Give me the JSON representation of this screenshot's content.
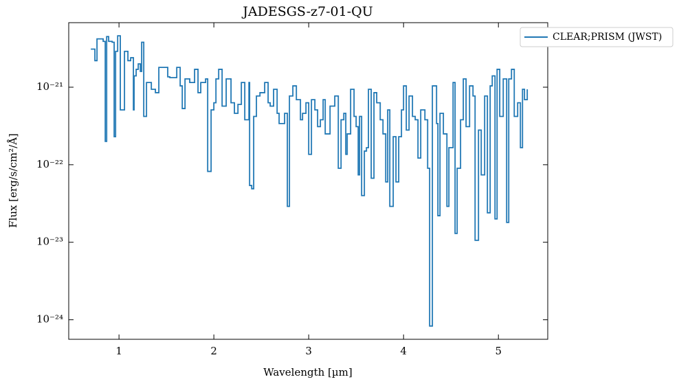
{
  "chart_data": {
    "type": "line",
    "title": "JADESGS-z7-01-QU",
    "xlabel": "Wavelength [µm]",
    "ylabel": "Flux [erg/s/cm²/Å]",
    "xlim": [
      0.47,
      5.52
    ],
    "xticks": [
      1,
      2,
      3,
      4,
      5
    ],
    "ylim": [
      6.8e-21,
      5.6e-25
    ],
    "log_y": true,
    "yticks": [
      {
        "value": 1e-21,
        "label": "10⁻²¹"
      },
      {
        "value": 1e-22,
        "label": "10⁻²²"
      },
      {
        "value": 1e-23,
        "label": "10⁻²³"
      },
      {
        "value": 1e-24,
        "label": "10⁻²⁴"
      }
    ],
    "legend": "upper right",
    "step": true,
    "x": [
      0.703,
      0.746,
      0.768,
      0.833,
      0.855,
      0.87,
      0.891,
      0.928,
      0.949,
      0.964,
      0.986,
      1.014,
      1.058,
      1.094,
      1.123,
      1.152,
      1.159,
      1.181,
      1.203,
      1.225,
      1.239,
      1.261,
      1.29,
      1.341,
      1.384,
      1.42,
      1.514,
      1.536,
      1.609,
      1.645,
      1.667,
      1.696,
      1.746,
      1.797,
      1.833,
      1.862,
      1.913,
      1.935,
      1.971,
      2.0,
      2.022,
      2.051,
      2.087,
      2.13,
      2.181,
      2.217,
      2.254,
      2.29,
      2.326,
      2.37,
      2.377,
      2.399,
      2.42,
      2.449,
      2.486,
      2.536,
      2.572,
      2.594,
      2.63,
      2.667,
      2.688,
      2.746,
      2.775,
      2.797,
      2.833,
      2.87,
      2.913,
      2.935,
      2.971,
      3.0,
      3.029,
      3.065,
      3.094,
      3.123,
      3.152,
      3.174,
      3.225,
      3.275,
      3.312,
      3.341,
      3.37,
      3.391,
      3.406,
      3.442,
      3.478,
      3.5,
      3.522,
      3.536,
      3.558,
      3.587,
      3.609,
      3.63,
      3.659,
      3.688,
      3.717,
      3.754,
      3.783,
      3.812,
      3.833,
      3.855,
      3.891,
      3.92,
      3.949,
      3.978,
      4.0,
      4.029,
      4.058,
      4.094,
      4.123,
      4.152,
      4.181,
      4.225,
      4.254,
      4.275,
      4.304,
      4.348,
      4.362,
      4.384,
      4.42,
      4.457,
      4.478,
      4.522,
      4.543,
      4.565,
      4.601,
      4.63,
      4.659,
      4.696,
      4.732,
      4.754,
      4.79,
      4.819,
      4.855,
      4.884,
      4.913,
      4.935,
      4.964,
      4.986,
      5.014,
      5.051,
      5.087,
      5.109,
      5.138,
      5.167,
      5.203,
      5.232,
      5.254,
      5.275,
      5.304
    ],
    "series": [
      {
        "name": "CLEAR;PRISM (JWST)",
        "color": "#1f77b4",
        "values": [
          3.1e-21,
          2.2e-21,
          4.2e-21,
          3.9e-21,
          2e-22,
          4.5e-21,
          3.9e-21,
          3.8e-21,
          2.3e-22,
          2.9e-21,
          4.6e-21,
          5.1e-22,
          2.9e-21,
          2.2e-21,
          2.4e-21,
          5.1e-22,
          1.4e-21,
          1.7e-21,
          2e-21,
          1.6e-21,
          3.8e-21,
          4.2e-22,
          1.15e-21,
          9.4e-22,
          8.5e-22,
          1.8e-21,
          1.36e-21,
          1.33e-21,
          1.8e-21,
          1.04e-21,
          5.3e-22,
          1.28e-21,
          1.15e-21,
          1.7e-21,
          8.5e-22,
          1.15e-21,
          1.28e-21,
          8.2e-23,
          5.1e-22,
          6.3e-22,
          1.28e-21,
          1.7e-21,
          5.7e-22,
          1.28e-21,
          6.3e-22,
          4.6e-22,
          6e-22,
          1.15e-21,
          3.8e-22,
          1.15e-21,
          5.4e-23,
          4.9e-23,
          4.2e-22,
          7.7e-22,
          8.5e-22,
          1.15e-21,
          6.3e-22,
          5.7e-22,
          9.4e-22,
          4.6e-22,
          3.4e-22,
          4.6e-22,
          2.9e-23,
          7.7e-22,
          1.04e-21,
          6.9e-22,
          3.8e-22,
          4.6e-22,
          6.3e-22,
          1.36e-22,
          6.9e-22,
          5.1e-22,
          3.1e-22,
          3.8e-22,
          6.9e-22,
          2.5e-22,
          5.7e-22,
          7.7e-22,
          9e-23,
          3.8e-22,
          4.6e-22,
          1.36e-22,
          2.5e-22,
          9.4e-22,
          4.2e-22,
          3.1e-22,
          7.4e-23,
          4.2e-22,
          4e-23,
          1.5e-22,
          1.66e-22,
          9.4e-22,
          6.7e-23,
          8.5e-22,
          6.3e-22,
          3.8e-22,
          2.5e-22,
          6e-23,
          5.1e-22,
          2.9e-23,
          2.3e-22,
          6e-23,
          2.3e-22,
          5.1e-22,
          1.04e-21,
          2.8e-22,
          7.7e-22,
          4.2e-22,
          3.8e-22,
          1.22e-22,
          5.1e-22,
          3.8e-22,
          9e-23,
          8.3e-25,
          1.04e-21,
          3.4e-22,
          2.2e-23,
          4.6e-22,
          2.5e-22,
          2.9e-23,
          1.66e-22,
          1.15e-21,
          1.3e-23,
          9e-23,
          3.8e-22,
          1.28e-21,
          3.1e-22,
          1.04e-21,
          7.7e-22,
          1.06e-23,
          2.8e-22,
          7.4e-23,
          7.7e-22,
          2.4e-23,
          1.04e-21,
          1.4e-21,
          2e-23,
          1.7e-21,
          4.2e-22,
          1.28e-21,
          1.8e-23,
          1.28e-21,
          1.7e-21,
          4.2e-22,
          6.3e-22,
          1.66e-22,
          9.4e-22,
          6.9e-22,
          9.4e-22
        ]
      }
    ]
  }
}
